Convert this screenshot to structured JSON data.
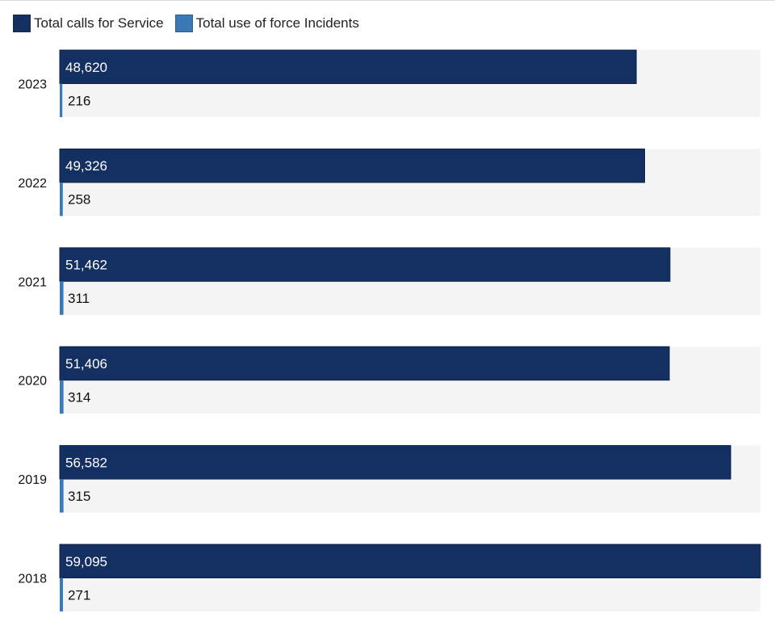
{
  "legend": [
    {
      "label": "Total calls for Service",
      "color": "#142f61"
    },
    {
      "label": "Total use of force Incidents",
      "color": "#3a78b6"
    }
  ],
  "chart_data": {
    "type": "bar",
    "orientation": "horizontal",
    "grouping": "paired-rows",
    "categories": [
      "2023",
      "2022",
      "2021",
      "2020",
      "2019",
      "2018"
    ],
    "series": [
      {
        "name": "Total calls for Service",
        "values": [
          48620,
          49326,
          51462,
          51406,
          56582,
          59095
        ],
        "labels": [
          "48,620",
          "49,326",
          "51,462",
          "51,406",
          "56,582",
          "59,095"
        ],
        "color": "#142f61"
      },
      {
        "name": "Total use of force Incidents",
        "values": [
          216,
          258,
          311,
          314,
          315,
          271
        ],
        "labels": [
          "216",
          "258",
          "311",
          "314",
          "315",
          "271"
        ],
        "color": "#3a78b6"
      }
    ],
    "xlim": [
      0,
      59095
    ],
    "grid": false,
    "legend_position": "top-left",
    "track_color": "#f4f4f4"
  }
}
